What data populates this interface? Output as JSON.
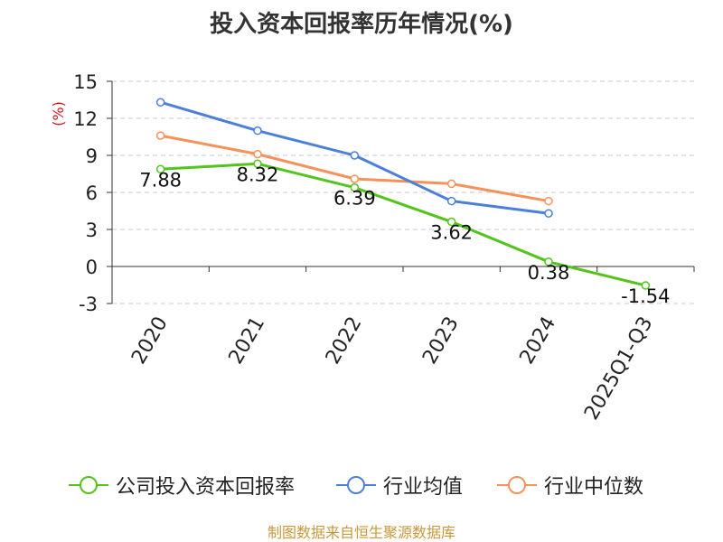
{
  "title": "投入资本回报率历年情况(%)",
  "source": "制图数据来自恒生聚源数据库",
  "chart_data": {
    "type": "line",
    "title": "投入资本回报率历年情况(%)",
    "ylabel": "(%)",
    "ylim": [
      -3,
      15
    ],
    "yticks": [
      -3,
      0,
      3,
      6,
      9,
      12,
      15
    ],
    "y_tick_labels": [
      "-3",
      "0",
      "3",
      "6",
      "9",
      "12",
      "15"
    ],
    "grid": true,
    "legend_position": "bottom",
    "categories": [
      "2020",
      "2021",
      "2022",
      "2023",
      "2024",
      "2025Q1-Q3"
    ],
    "series": [
      {
        "name": "公司投入资本回报率",
        "color": "#52c41a",
        "values": [
          7.88,
          8.32,
          6.39,
          3.62,
          0.38,
          -1.54
        ],
        "data_labels": [
          "7.88",
          "8.32",
          "6.39",
          "3.62",
          "0.38",
          "-1.54"
        ]
      },
      {
        "name": "行业均值",
        "color": "#4a7fdc",
        "values": [
          13.3,
          11.0,
          9.0,
          5.3,
          4.3,
          null
        ]
      },
      {
        "name": "行业中位数",
        "color": "#f7915a",
        "values": [
          10.6,
          9.1,
          7.1,
          6.7,
          5.3,
          null
        ]
      }
    ]
  }
}
